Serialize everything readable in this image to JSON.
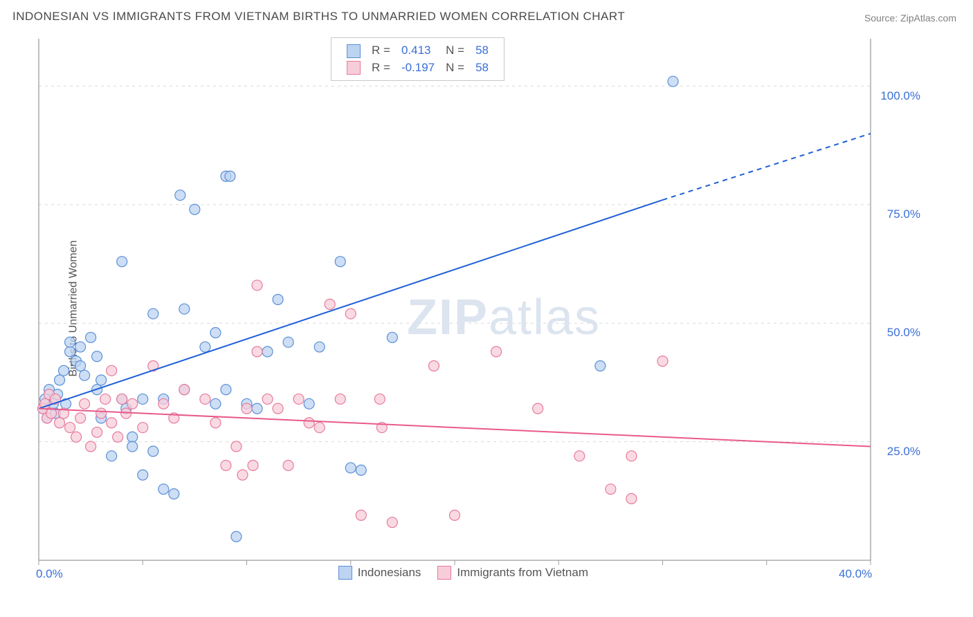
{
  "title": "INDONESIAN VS IMMIGRANTS FROM VIETNAM BIRTHS TO UNMARRIED WOMEN CORRELATION CHART",
  "source": "Source: ZipAtlas.com",
  "ylabel": "Births to Unmarried Women",
  "watermark": {
    "zip": "ZIP",
    "atlas": "atlas"
  },
  "chart": {
    "type": "scatter",
    "background_color": "#ffffff",
    "grid_color": "#d8d8d8",
    "axis_color": "#808080",
    "tick_color": "#a0a0a0",
    "xlim": [
      0,
      40
    ],
    "ylim": [
      0,
      110
    ],
    "xtick_labels": [
      {
        "x": 0,
        "label": "0.0%"
      },
      {
        "x": 40,
        "label": "40.0%"
      }
    ],
    "xtick_positions": [
      0,
      5,
      10,
      15,
      20,
      25,
      30,
      35,
      40
    ],
    "ytick_labels": [
      {
        "y": 25,
        "label": "25.0%"
      },
      {
        "y": 50,
        "label": "50.0%"
      },
      {
        "y": 75,
        "label": "75.0%"
      },
      {
        "y": 100,
        "label": "100.0%"
      }
    ],
    "tick_label_color": "#3a6fd8",
    "tick_label_fontsize": 17,
    "marker_radius": 7.5,
    "marker_stroke_width": 1.2,
    "series": [
      {
        "name": "Indonesians",
        "fill": "#bcd3f2",
        "stroke": "#5a8fd6",
        "R": "0.413",
        "N": "58",
        "trend": {
          "color": "#1e5fd6",
          "width": 2,
          "x1": 0,
          "y1": 32,
          "x2": 30,
          "y2": 76,
          "dash_x": 30,
          "dash_y": 76,
          "dash_x2": 40,
          "dash_y2": 90
        },
        "points": [
          [
            0.2,
            32
          ],
          [
            0.3,
            34
          ],
          [
            0.4,
            30
          ],
          [
            0.5,
            36
          ],
          [
            0.7,
            33
          ],
          [
            0.8,
            31
          ],
          [
            0.9,
            35
          ],
          [
            1.0,
            38
          ],
          [
            1.2,
            40
          ],
          [
            1.3,
            33
          ],
          [
            1.5,
            44
          ],
          [
            1.5,
            46
          ],
          [
            1.8,
            42
          ],
          [
            2.0,
            45
          ],
          [
            2.0,
            41
          ],
          [
            2.2,
            39
          ],
          [
            2.5,
            47
          ],
          [
            2.8,
            43
          ],
          [
            2.8,
            36
          ],
          [
            3.0,
            38
          ],
          [
            3.0,
            30
          ],
          [
            3.5,
            22
          ],
          [
            4.0,
            63
          ],
          [
            4.0,
            34
          ],
          [
            4.2,
            32
          ],
          [
            4.5,
            26
          ],
          [
            4.5,
            24
          ],
          [
            5.0,
            18
          ],
          [
            5.0,
            34
          ],
          [
            5.5,
            52
          ],
          [
            5.5,
            23
          ],
          [
            6.0,
            34
          ],
          [
            6.0,
            15
          ],
          [
            6.5,
            14
          ],
          [
            6.8,
            77
          ],
          [
            7.0,
            53
          ],
          [
            7.0,
            36
          ],
          [
            7.5,
            74
          ],
          [
            8.0,
            45
          ],
          [
            8.5,
            48
          ],
          [
            8.5,
            33
          ],
          [
            9.0,
            81
          ],
          [
            9.0,
            36
          ],
          [
            9.2,
            81
          ],
          [
            9.5,
            5
          ],
          [
            10.0,
            33
          ],
          [
            10.5,
            32
          ],
          [
            11.0,
            44
          ],
          [
            11.5,
            55
          ],
          [
            12.0,
            46
          ],
          [
            13.0,
            33
          ],
          [
            13.5,
            45
          ],
          [
            14.5,
            63
          ],
          [
            15.0,
            19.5
          ],
          [
            15.5,
            19
          ],
          [
            17.0,
            47
          ],
          [
            27.0,
            41
          ],
          [
            30.5,
            101
          ]
        ]
      },
      {
        "name": "Immigrants from Vietnam",
        "fill": "#f7cdd9",
        "stroke": "#e77a9b",
        "R": "-0.197",
        "N": "58",
        "trend": {
          "color": "#e85a8a",
          "width": 2,
          "x1": 0,
          "y1": 32,
          "x2": 40,
          "y2": 24
        },
        "points": [
          [
            0.2,
            32
          ],
          [
            0.3,
            33
          ],
          [
            0.4,
            30
          ],
          [
            0.5,
            35
          ],
          [
            0.6,
            31
          ],
          [
            0.8,
            34
          ],
          [
            1.0,
            29
          ],
          [
            1.2,
            31
          ],
          [
            1.5,
            28
          ],
          [
            1.8,
            26
          ],
          [
            2.0,
            30
          ],
          [
            2.2,
            33
          ],
          [
            2.5,
            24
          ],
          [
            2.8,
            27
          ],
          [
            3.0,
            31
          ],
          [
            3.2,
            34
          ],
          [
            3.5,
            29
          ],
          [
            3.5,
            40
          ],
          [
            3.8,
            26
          ],
          [
            4.0,
            34
          ],
          [
            4.2,
            31
          ],
          [
            4.5,
            33
          ],
          [
            5.0,
            28
          ],
          [
            5.5,
            41
          ],
          [
            6.0,
            33
          ],
          [
            6.5,
            30
          ],
          [
            7.0,
            36
          ],
          [
            8.0,
            34
          ],
          [
            8.5,
            29
          ],
          [
            9.0,
            20
          ],
          [
            9.5,
            24
          ],
          [
            9.8,
            18
          ],
          [
            10.0,
            32
          ],
          [
            10.3,
            20
          ],
          [
            10.5,
            44
          ],
          [
            10.5,
            58
          ],
          [
            11.0,
            34
          ],
          [
            11.5,
            32
          ],
          [
            12.0,
            20
          ],
          [
            12.5,
            34
          ],
          [
            13.0,
            29
          ],
          [
            13.5,
            28
          ],
          [
            14.0,
            54
          ],
          [
            14.5,
            34
          ],
          [
            15.0,
            52
          ],
          [
            15.5,
            9.5
          ],
          [
            16.4,
            34
          ],
          [
            16.5,
            28
          ],
          [
            17.0,
            8
          ],
          [
            19.0,
            41
          ],
          [
            20.0,
            9.5
          ],
          [
            22.0,
            44
          ],
          [
            24.0,
            32
          ],
          [
            26.0,
            22
          ],
          [
            27.5,
            15
          ],
          [
            28.5,
            13
          ],
          [
            28.5,
            22
          ],
          [
            30.0,
            42
          ]
        ]
      }
    ],
    "bottom_legend": [
      {
        "label": "Indonesians",
        "series_index": 0
      },
      {
        "label": "Immigrants from Vietnam",
        "series_index": 1
      }
    ]
  }
}
